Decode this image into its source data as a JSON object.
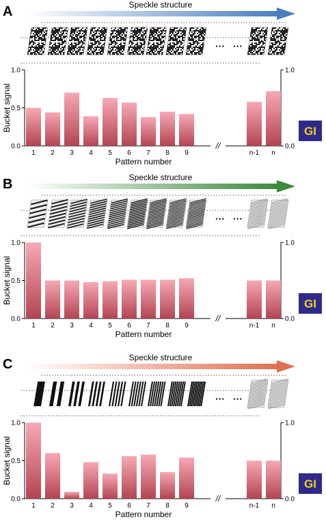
{
  "colors": {
    "bar_top": "#f6a9b4",
    "bar_bottom": "#b44452",
    "gi_bg": "#2d2a8c",
    "gi_text": "#f5d21a",
    "arrow_A": "#4a7fc0",
    "arrow_B": "#3d8a3d",
    "arrow_C": "#e07050"
  },
  "panels": [
    {
      "letter": "A",
      "arrow_label": "Speckle structure",
      "pattern_kind": "random-speckle",
      "ellipsis": "···",
      "gi_label": "GI",
      "chart_data": {
        "type": "bar",
        "categories": [
          "1",
          "2",
          "3",
          "4",
          "5",
          "6",
          "7",
          "8",
          "9",
          "n-1",
          "n"
        ],
        "values": [
          0.5,
          0.44,
          0.7,
          0.39,
          0.63,
          0.57,
          0.38,
          0.45,
          0.42,
          0.58,
          0.72
        ],
        "ylabel": "Bucket signal",
        "xlabel": "Pattern number",
        "ylim": [
          0,
          1.0
        ],
        "left_ticks": [
          "0.0",
          "0.5",
          "1.0"
        ],
        "right_ticks": [
          "0.0",
          "1.0"
        ],
        "axis_break": "//"
      }
    },
    {
      "letter": "B",
      "arrow_label": "Speckle structure",
      "pattern_kind": "stripes-increasing-frequency",
      "ellipsis": "···",
      "gi_label": "GI",
      "chart_data": {
        "type": "bar",
        "categories": [
          "1",
          "2",
          "3",
          "4",
          "5",
          "6",
          "7",
          "8",
          "9",
          "n-1",
          "n"
        ],
        "values": [
          1.0,
          0.5,
          0.5,
          0.48,
          0.49,
          0.51,
          0.51,
          0.51,
          0.53,
          0.5,
          0.5
        ],
        "ylabel": "Bucket signal",
        "xlabel": "Pattern number",
        "ylim": [
          0,
          1.0
        ],
        "left_ticks": [
          "0.0",
          "0.5",
          "1.0"
        ],
        "right_ticks": [
          "0.0",
          "1.0"
        ],
        "axis_break": "//"
      }
    },
    {
      "letter": "C",
      "arrow_label": "Speckle structure",
      "pattern_kind": "bars-increasing-count",
      "ellipsis": "···",
      "gi_label": "GI",
      "chart_data": {
        "type": "bar",
        "categories": [
          "1",
          "2",
          "3",
          "4",
          "5",
          "6",
          "7",
          "8",
          "9",
          "n-1",
          "n"
        ],
        "values": [
          1.0,
          0.6,
          0.09,
          0.48,
          0.33,
          0.56,
          0.58,
          0.35,
          0.54,
          0.5,
          0.5
        ],
        "ylabel": "Bucket signal",
        "xlabel": "Pattern number",
        "ylim": [
          0,
          1.0
        ],
        "left_ticks": [
          "0.0",
          "0.5",
          "1.0"
        ],
        "right_ticks": [
          "0.0",
          "1.0"
        ],
        "axis_break": "//"
      }
    }
  ]
}
